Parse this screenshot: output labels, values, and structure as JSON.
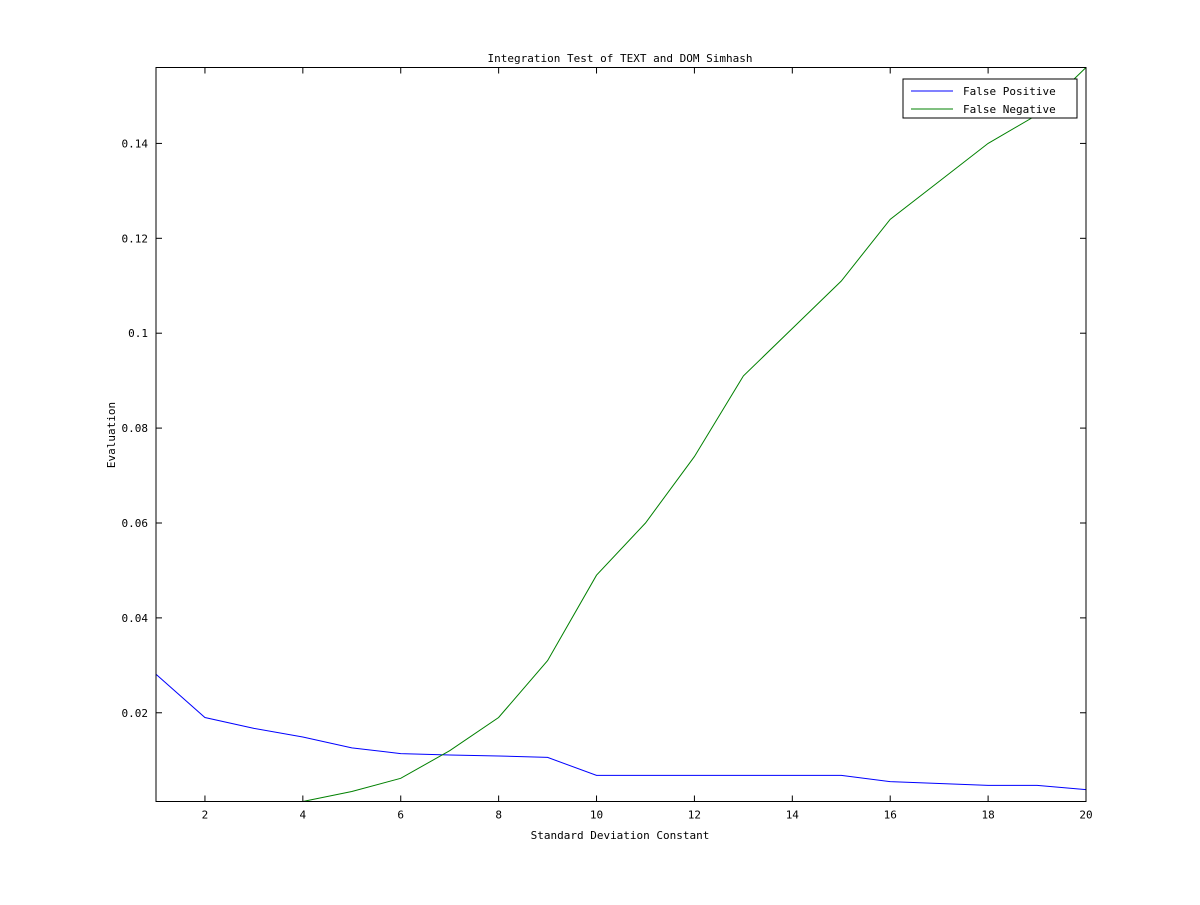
{
  "chart_data": {
    "type": "line",
    "title": "Integration Test of TEXT and DOM Simhash",
    "xlabel": "Standard Deviation Constant",
    "ylabel": "Evaluation",
    "xlim": [
      1,
      20
    ],
    "ylim": [
      0.0013,
      0.156
    ],
    "xticks": [
      2,
      4,
      6,
      8,
      10,
      12,
      14,
      16,
      18,
      20
    ],
    "xtick_labels": [
      "2",
      "4",
      "6",
      "8",
      "10",
      "12",
      "14",
      "16",
      "18",
      "20"
    ],
    "yticks": [
      0.02,
      0.04,
      0.06,
      0.08,
      0.1,
      0.12,
      0.14
    ],
    "ytick_labels": [
      "0.02",
      "0.04",
      "0.06",
      "0.08",
      "0.1",
      "0.12",
      "0.14"
    ],
    "grid": false,
    "legend_position": "top-right",
    "x": [
      1,
      2,
      3,
      4,
      5,
      6,
      7,
      8,
      9,
      10,
      11,
      12,
      13,
      14,
      15,
      16,
      17,
      18,
      19,
      20
    ],
    "series": [
      {
        "name": "False Positive",
        "color": "#0000ff",
        "values": [
          0.0281,
          0.019,
          0.0167,
          0.0149,
          0.0126,
          0.0114,
          0.0111,
          0.0109,
          0.0106,
          0.0068,
          0.0068,
          0.0068,
          0.0068,
          0.0068,
          0.0068,
          0.0055,
          0.0051,
          0.0047,
          0.0047,
          0.0038
        ]
      },
      {
        "name": "False Negative",
        "color": "#008000",
        "values": [
          null,
          null,
          null,
          0.0013,
          0.0034,
          0.0062,
          0.012,
          0.019,
          0.031,
          0.049,
          0.06,
          0.074,
          0.091,
          0.101,
          0.111,
          0.124,
          0.132,
          0.14,
          0.146,
          0.156
        ]
      }
    ]
  }
}
